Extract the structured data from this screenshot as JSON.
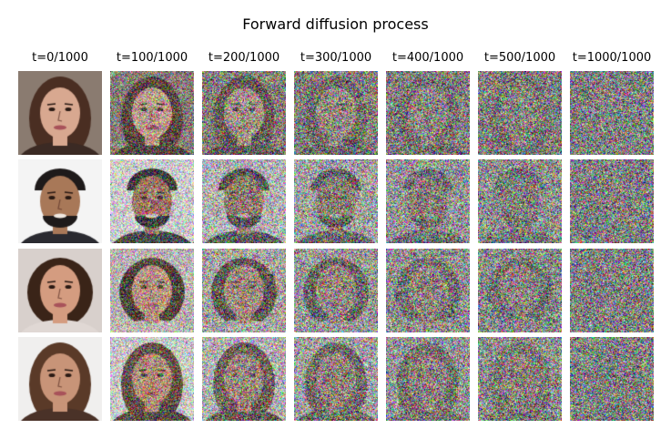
{
  "figure": {
    "title": "Forward diffusion process",
    "timesteps": [
      {
        "label": "t=0/1000",
        "t": 0,
        "total": 1000
      },
      {
        "label": "t=100/1000",
        "t": 100,
        "total": 1000
      },
      {
        "label": "t=200/1000",
        "t": 200,
        "total": 1000
      },
      {
        "label": "t=300/1000",
        "t": 300,
        "total": 1000
      },
      {
        "label": "t=400/1000",
        "t": 400,
        "total": 1000
      },
      {
        "label": "t=500/1000",
        "t": 500,
        "total": 1000
      },
      {
        "label": "t=1000/1000",
        "t": 1000,
        "total": 1000
      }
    ],
    "rows": [
      {
        "subject": "woman with long brown hair",
        "colors": {
          "background": "#8a7b70",
          "hair": "#4a2e22",
          "skin": "#d8a890",
          "shirt": "#3b2a24"
        }
      },
      {
        "subject": "man with beard on white background",
        "colors": {
          "background": "#f4f4f4",
          "hair": "#1e1a1a",
          "skin": "#a87858",
          "shirt": "#2a2a30"
        }
      },
      {
        "subject": "smiling woman with dark bob haircut",
        "colors": {
          "background": "#d8d0cc",
          "hair": "#3a2418",
          "skin": "#d49c80",
          "shirt": "#e0d8d4"
        }
      },
      {
        "subject": "woman with brown hair and highlights",
        "colors": {
          "background": "#f0efee",
          "hair": "#5a3a28",
          "skin": "#c89478",
          "shirt": "#4a3228"
        }
      }
    ]
  }
}
